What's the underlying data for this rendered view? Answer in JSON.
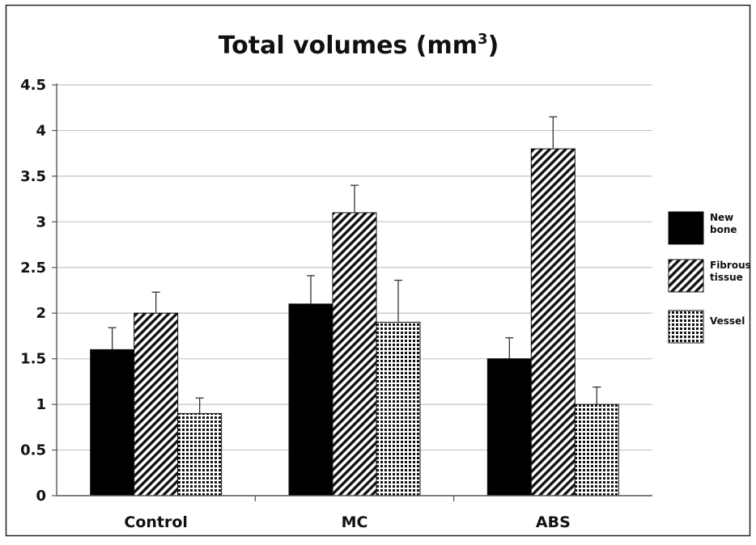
{
  "chart_data": {
    "type": "bar",
    "title": "Total volumes (mm",
    "title_superscript": "3",
    "title_suffix": ")",
    "categories": [
      "Control",
      "MC",
      "ABS"
    ],
    "ylim": [
      0,
      4.5
    ],
    "yticks": [
      0,
      0.5,
      1,
      1.5,
      2,
      2.5,
      3,
      3.5,
      4,
      4.5
    ],
    "ytick_labels": [
      "0",
      "0.5",
      "1",
      "1.5",
      "2",
      "2.5",
      "3",
      "3.5",
      "4",
      "4.5"
    ],
    "grid": true,
    "legend_position": "right",
    "series": [
      {
        "legend_lines": [
          "New",
          "bone"
        ],
        "pattern": "solid",
        "color": "#000000",
        "values": [
          1.6,
          2.1,
          1.5
        ],
        "errors": [
          0.24,
          0.31,
          0.23
        ]
      },
      {
        "legend_lines": [
          "Fibrous",
          "tissue"
        ],
        "pattern": "diagonal-hatch",
        "color": "#000000",
        "values": [
          2.0,
          3.1,
          3.8
        ],
        "errors": [
          0.23,
          0.3,
          0.35
        ]
      },
      {
        "legend_lines": [
          "Vessel"
        ],
        "pattern": "dots",
        "color": "#000000",
        "values": [
          0.9,
          1.9,
          1.0
        ],
        "errors": [
          0.17,
          0.46,
          0.19
        ]
      }
    ]
  }
}
